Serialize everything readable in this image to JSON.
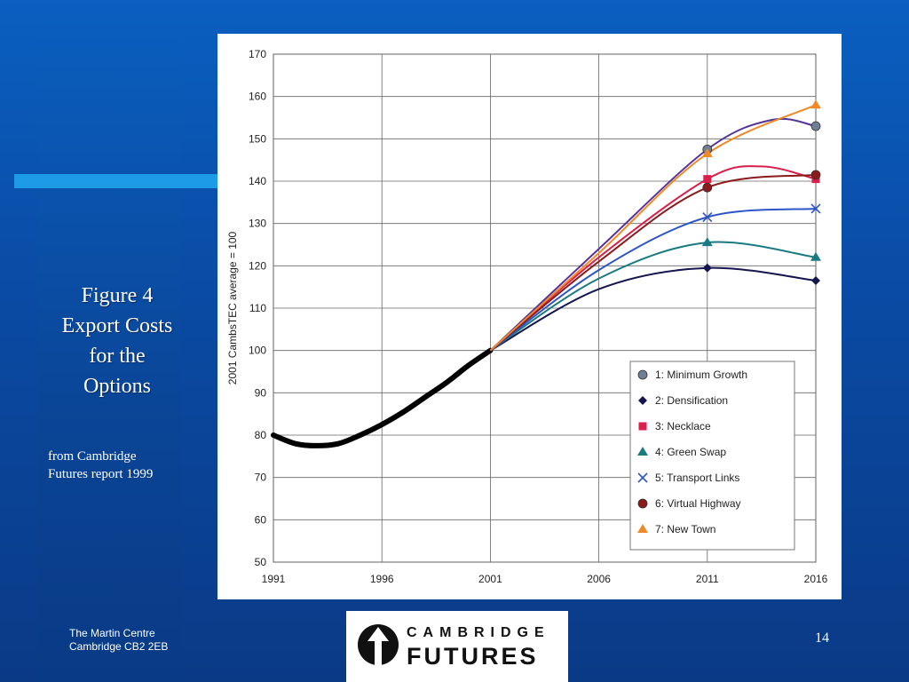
{
  "slide": {
    "title_lines": [
      "Figure 4",
      "Export Costs",
      "for the",
      "Options"
    ],
    "source_lines": [
      "from Cambridge",
      "Futures report 1999"
    ],
    "footer_lines": [
      "The Martin Centre",
      "Cambridge CB2 2EB"
    ],
    "page_number": "14",
    "logo": {
      "top": "CAMBRIDGE",
      "bottom": "FUTURES"
    },
    "colors": {
      "background": "#0a4aa3",
      "accent_bar": "#1e9be6"
    }
  },
  "chart_data": {
    "type": "line",
    "ylabel": "2001 CambsTEC average = 100",
    "xlabel": "",
    "xlim": [
      1991,
      2016
    ],
    "ylim": [
      50,
      170
    ],
    "x_ticks": [
      "1991",
      "1996",
      "2001",
      "2006",
      "2011",
      "2016"
    ],
    "y_ticks": [
      "50",
      "60",
      "70",
      "80",
      "90",
      "100",
      "110",
      "120",
      "130",
      "140",
      "150",
      "160",
      "170"
    ],
    "grid": true,
    "legend_position": "bottom-right",
    "historical": {
      "x": [
        1991,
        1992,
        1993,
        1994,
        1995,
        1996,
        1997,
        1998,
        1999,
        2000,
        2001
      ],
      "y": [
        80,
        78,
        77.5,
        78,
        80,
        82.5,
        85.5,
        89,
        92.5,
        96.5,
        100
      ],
      "color": "#000000"
    },
    "series": [
      {
        "name": "1: Minimum Growth",
        "x": [
          2001,
          2006,
          2011,
          2014,
          2016
        ],
        "y": [
          100,
          124,
          147.5,
          154.5,
          153
        ],
        "marker": "circle",
        "color": "#55339a",
        "marker_color": "#6f7f95"
      },
      {
        "name": "2: Densification",
        "x": [
          2001,
          2006,
          2011,
          2016
        ],
        "y": [
          100,
          114.5,
          119.5,
          116.5
        ],
        "marker": "diamond",
        "color": "#15154f",
        "marker_color": "#15154f"
      },
      {
        "name": "3: Necklace",
        "x": [
          2001,
          2006,
          2011,
          2013.5,
          2016
        ],
        "y": [
          100,
          122,
          140.5,
          143.5,
          140.5
        ],
        "marker": "square",
        "color": "#d91f4a",
        "marker_color": "#d91f4a"
      },
      {
        "name": "4: Green Swap",
        "x": [
          2001,
          2006,
          2011,
          2016
        ],
        "y": [
          100,
          117,
          125.5,
          122
        ],
        "marker": "triangle",
        "color": "#1a7a82",
        "marker_color": "#1a7a82"
      },
      {
        "name": "5: Transport Links",
        "x": [
          2001,
          2006,
          2011,
          2016
        ],
        "y": [
          100,
          119,
          131.5,
          133.5
        ],
        "marker": "cross",
        "color": "#2d55c8",
        "marker_color": "#2d55c8"
      },
      {
        "name": "6: Virtual Highway",
        "x": [
          2001,
          2006,
          2011,
          2016
        ],
        "y": [
          100,
          121,
          138.5,
          141.5
        ],
        "marker": "circle",
        "color": "#8c1a1a",
        "marker_color": "#8c1a1a"
      },
      {
        "name": "7: New Town",
        "x": [
          2001,
          2006,
          2011,
          2016
        ],
        "y": [
          100,
          123,
          146.5,
          158
        ],
        "marker": "triangle",
        "color": "#f08a28",
        "marker_color": "#f08a28"
      }
    ]
  }
}
